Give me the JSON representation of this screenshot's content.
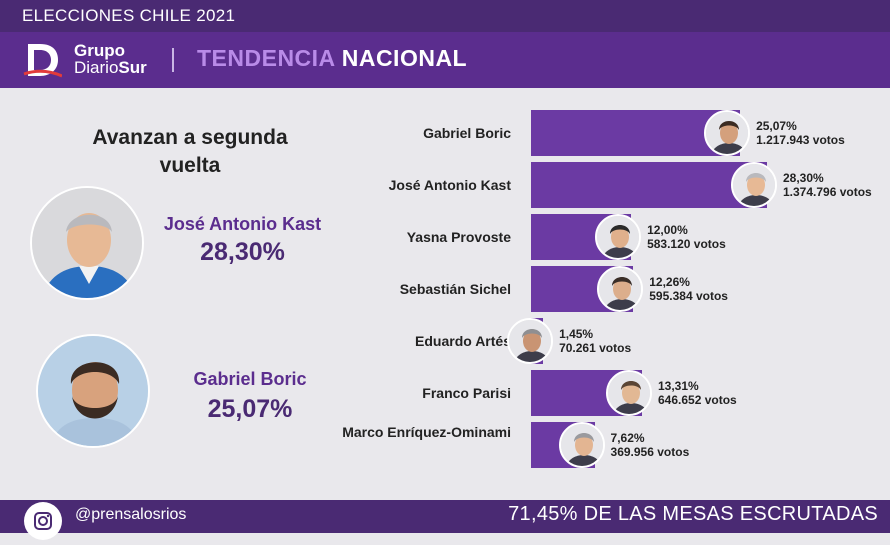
{
  "topbar": {
    "title": "ELECCIONES CHILE 2021"
  },
  "header": {
    "logo_line1": "Grupo",
    "logo_line2a": "Diario",
    "logo_line2b": "Sur",
    "heading_a": "TENDENCIA",
    "heading_b": "NACIONAL"
  },
  "advance": {
    "title": "Avanzan a segunda vuelta",
    "first": {
      "name": "José Antonio Kast",
      "pct": "28,30%"
    },
    "second": {
      "name": "Gabriel Boric",
      "pct": "25,07%"
    }
  },
  "chart_data": {
    "type": "bar",
    "orientation": "horizontal",
    "categories": [
      "Gabriel Boric",
      "José Antonio Kast",
      "Yasna Provoste",
      "Sebastián Sichel",
      "Eduardo Artés",
      "Franco Parisi",
      "Marco Enríquez-Ominami"
    ],
    "values": [
      25.07,
      28.3,
      12.0,
      12.26,
      1.45,
      13.31,
      7.62
    ],
    "value_labels": [
      "25,07%",
      "28,30%",
      "12,00%",
      "12,26%",
      "1,45%",
      "13,31%",
      "7,62%"
    ],
    "votes": [
      "1.217.943 votos",
      "1.374.796 votos",
      "583.120 votos",
      "595.384 votos",
      "70.261 votos",
      "646.652 votos",
      "369.956 votos"
    ],
    "xlim": [
      0,
      28.3
    ],
    "bar_color": "#6b3aa3"
  },
  "footer": {
    "handle": "@prensalosrios",
    "progress": "71,45% DE LAS MESAS ESCRUTADAS"
  },
  "colors": {
    "accent": "#5b2d8e",
    "dark": "#4a2a73",
    "highlight": "#b98be8"
  }
}
